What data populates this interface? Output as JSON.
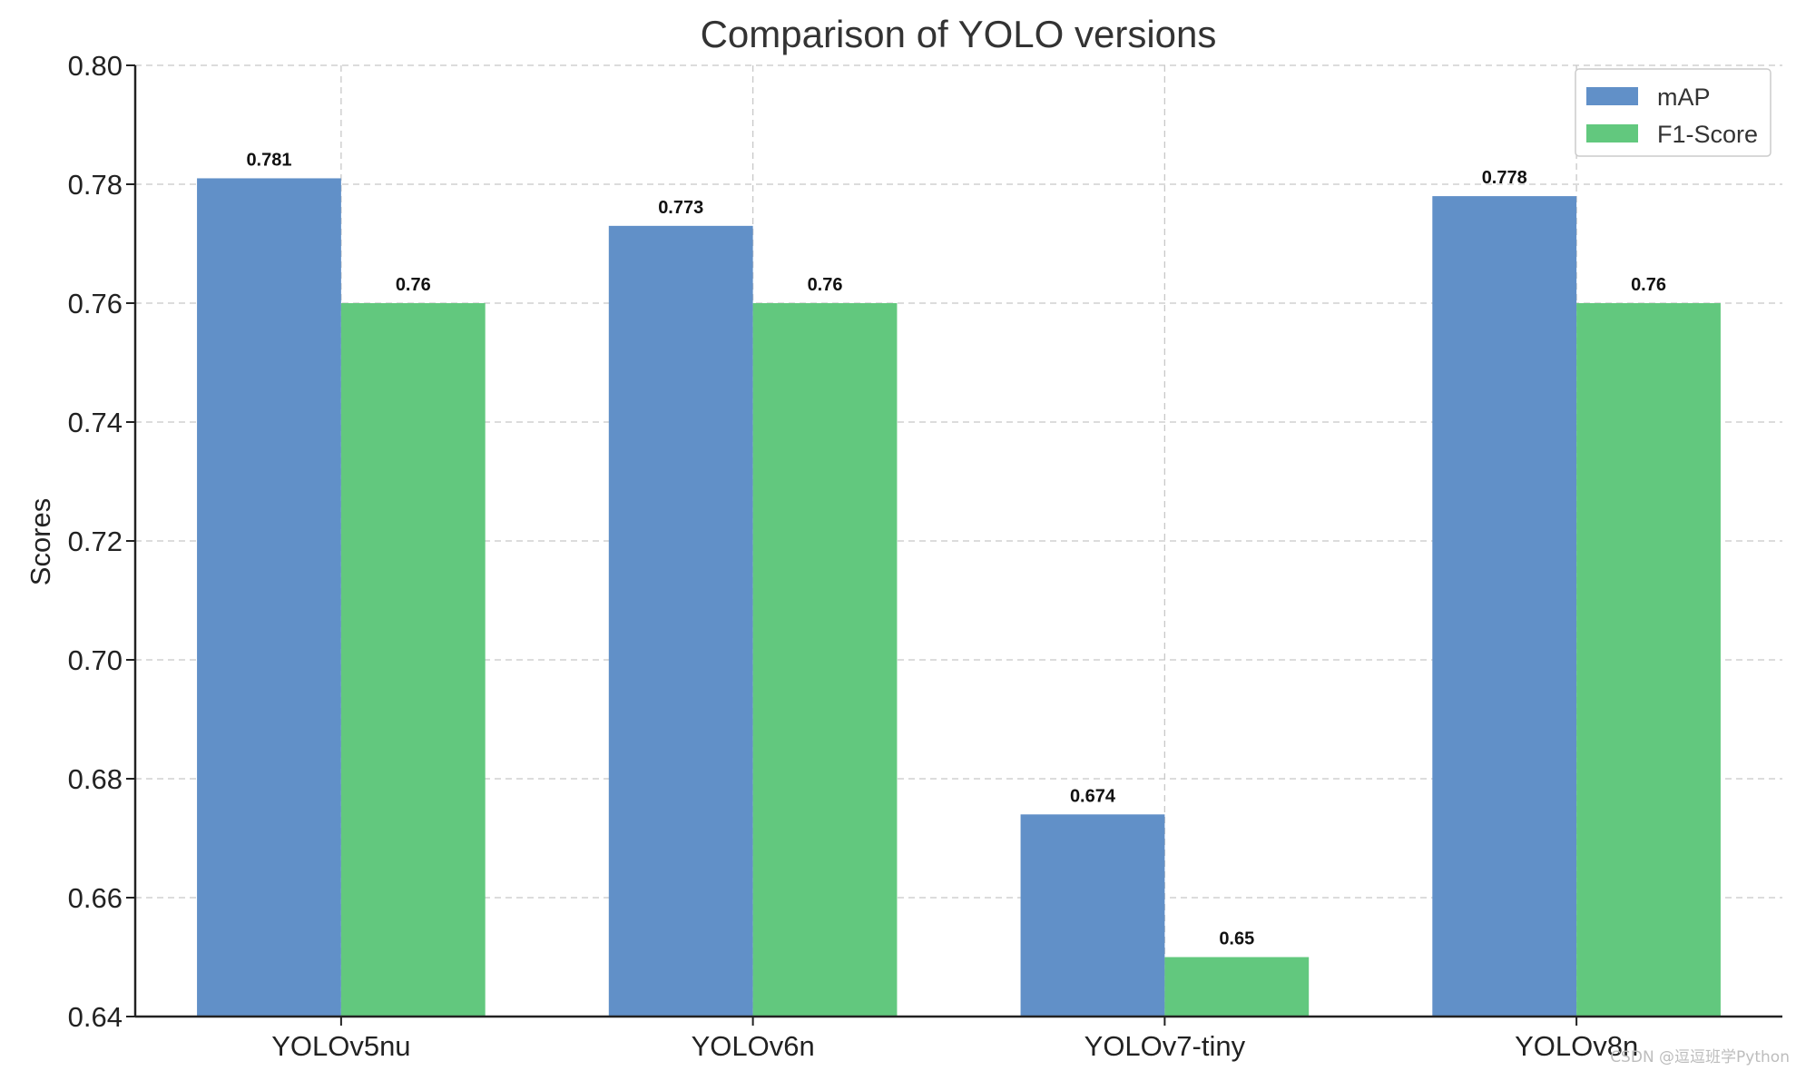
{
  "chart_data": {
    "type": "bar",
    "title": "Comparison of YOLO versions",
    "xlabel": "",
    "ylabel": "Scores",
    "categories": [
      "YOLOv5nu",
      "YOLOv6n",
      "YOLOv7-tiny",
      "YOLOv8n"
    ],
    "series": [
      {
        "name": "mAP",
        "color": "#6190c8",
        "values": [
          0.781,
          0.773,
          0.674,
          0.778
        ],
        "labels": [
          "0.781",
          "0.773",
          "0.674",
          "0.778"
        ]
      },
      {
        "name": "F1-Score",
        "color": "#62c87e",
        "values": [
          0.76,
          0.76,
          0.65,
          0.76
        ],
        "labels": [
          "0.76",
          "0.76",
          "0.65",
          "0.76"
        ]
      }
    ],
    "ylim": [
      0.64,
      0.8
    ],
    "yticks": [
      0.64,
      0.66,
      0.68,
      0.7,
      0.72,
      0.74,
      0.76,
      0.78,
      0.8
    ],
    "ytick_labels": [
      "0.64",
      "0.66",
      "0.68",
      "0.70",
      "0.72",
      "0.74",
      "0.76",
      "0.78",
      "0.80"
    ],
    "grid": true,
    "legend_position": "top-right"
  },
  "watermark": "CSDN @逗逗班学Python"
}
